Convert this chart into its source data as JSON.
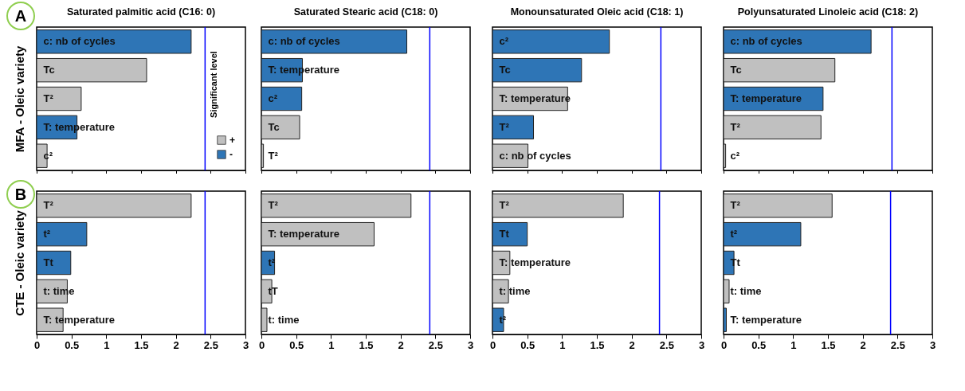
{
  "chart_data": [
    {
      "type": "bar",
      "orientation": "horizontal",
      "title": "Saturated palmitic acid (C16: 0)",
      "ylabel": "MFA - Oleic variety",
      "annotations": [
        "A"
      ],
      "categories": [
        "c: nb of cycles",
        "Tc",
        "T²",
        "T: temperature",
        "c²"
      ],
      "series": [
        {
          "name": "+",
          "color": "#c0c0c0",
          "values": [
            null,
            1.58,
            0.64,
            null,
            0.15
          ]
        },
        {
          "name": "-",
          "color": "#2e75b6",
          "values": [
            2.22,
            null,
            null,
            0.58,
            null
          ]
        }
      ],
      "xlim": [
        0,
        3
      ],
      "xticks": [
        0,
        0.5,
        1,
        1.5,
        2,
        2.5,
        3
      ],
      "tick_labels": "y",
      "legend": "bottom right",
      "ref_lines": [
        {
          "axis": "x",
          "value": 2.42,
          "label": "Significant level",
          "color": "#0000ff"
        }
      ]
    },
    {
      "type": "bar",
      "orientation": "horizontal",
      "title": "Saturated Stearic acid (C18: 0)",
      "categories": [
        "c: nb of cycles",
        "T: temperature",
        "c²",
        "Tc",
        "T²"
      ],
      "series": [
        {
          "color": "#c0c0c0",
          "values": [
            null,
            null,
            null,
            0.55,
            0.03
          ]
        },
        {
          "color": "#2e75b6",
          "values": [
            2.09,
            0.59,
            0.58,
            null,
            null
          ]
        }
      ],
      "xlim": [
        0,
        3
      ],
      "xticks": [
        0,
        0.5,
        1,
        1.5,
        2,
        2.5,
        3
      ],
      "tick_labels": "y",
      "ref_lines": [
        {
          "axis": "x",
          "value": 2.42,
          "color": "#0000ff"
        }
      ]
    },
    {
      "type": "bar",
      "orientation": "horizontal",
      "title": "Monounsaturated Oleic acid  (C18: 1)",
      "categories": [
        "c²",
        "Tc",
        "T: temperature",
        "T²",
        "c: nb of cycles"
      ],
      "series": [
        {
          "color": "#c0c0c0",
          "values": [
            null,
            null,
            1.08,
            null,
            0.51
          ]
        },
        {
          "color": "#2e75b6",
          "values": [
            1.68,
            1.28,
            null,
            0.59,
            null
          ]
        }
      ],
      "xlim": [
        0,
        3
      ],
      "xticks": [
        0,
        0.5,
        1,
        1.5,
        2,
        2.5,
        3
      ],
      "tick_labels": "y",
      "ref_lines": [
        {
          "axis": "x",
          "value": 2.42,
          "color": "#0000ff"
        }
      ]
    },
    {
      "type": "bar",
      "orientation": "horizontal",
      "title": "Polyunsaturated Linoleic  acid  (C18: 2)",
      "categories": [
        "c: nb of cycles",
        "Tc",
        "T: temperature",
        "T²",
        "c²"
      ],
      "series": [
        {
          "color": "#c0c0c0",
          "values": [
            null,
            1.6,
            null,
            1.4,
            0.03
          ]
        },
        {
          "color": "#2e75b6",
          "values": [
            2.12,
            null,
            1.43,
            null,
            null
          ]
        }
      ],
      "xlim": [
        0,
        3
      ],
      "xticks": [
        0,
        0.5,
        1,
        1.5,
        2,
        2.5,
        3
      ],
      "tick_labels": "y",
      "ref_lines": [
        {
          "axis": "x",
          "value": 2.42,
          "color": "#0000ff"
        }
      ]
    },
    {
      "type": "bar",
      "orientation": "horizontal",
      "ylabel": "CTE - Oleic variety",
      "annotations": [
        "B"
      ],
      "categories": [
        "T²",
        "t²",
        "Tt",
        "t: time",
        "T: temperature"
      ],
      "series": [
        {
          "color": "#c0c0c0",
          "values": [
            2.22,
            null,
            null,
            0.44,
            0.38
          ]
        },
        {
          "color": "#2e75b6",
          "values": [
            null,
            0.72,
            0.49,
            null,
            null
          ]
        }
      ],
      "xlim": [
        0,
        3
      ],
      "xticks": [
        0,
        0.5,
        1,
        1.5,
        2,
        2.5,
        3
      ],
      "ref_lines": [
        {
          "axis": "x",
          "value": 2.42,
          "color": "#0000ff"
        }
      ]
    },
    {
      "type": "bar",
      "orientation": "horizontal",
      "categories": [
        "T²",
        "T: temperature",
        "t²",
        "tT",
        "t: time"
      ],
      "series": [
        {
          "color": "#c0c0c0",
          "values": [
            2.15,
            1.62,
            null,
            0.15,
            0.08
          ]
        },
        {
          "color": "#2e75b6",
          "values": [
            null,
            null,
            0.19,
            null,
            null
          ]
        }
      ],
      "xlim": [
        0,
        3
      ],
      "xticks": [
        0,
        0.5,
        1,
        1.5,
        2,
        2.5,
        3
      ],
      "ref_lines": [
        {
          "axis": "x",
          "value": 2.42,
          "color": "#0000ff"
        }
      ]
    },
    {
      "type": "bar",
      "orientation": "horizontal",
      "categories": [
        "T²",
        "Tt",
        "T: temperature",
        "t: time",
        "t²"
      ],
      "series": [
        {
          "color": "#c0c0c0",
          "values": [
            1.88,
            null,
            0.25,
            0.23,
            null
          ]
        },
        {
          "color": "#2e75b6",
          "values": [
            null,
            0.5,
            null,
            null,
            0.16
          ]
        }
      ],
      "xlim": [
        0,
        3
      ],
      "xticks": [
        0,
        0.5,
        1,
        1.5,
        2,
        2.5,
        3
      ],
      "ref_lines": [
        {
          "axis": "x",
          "value": 2.4,
          "color": "#0000ff"
        }
      ]
    },
    {
      "type": "bar",
      "orientation": "horizontal",
      "categories": [
        "T²",
        "t²",
        "Tt",
        "t: time",
        "T: temperature"
      ],
      "series": [
        {
          "color": "#c0c0c0",
          "values": [
            1.56,
            null,
            null,
            0.08,
            null
          ]
        },
        {
          "color": "#2e75b6",
          "values": [
            null,
            1.11,
            0.15,
            null,
            0.04
          ]
        }
      ],
      "xlim": [
        0,
        3
      ],
      "xticks": [
        0,
        0.5,
        1,
        1.5,
        2,
        2.5,
        3
      ],
      "ref_lines": [
        {
          "axis": "x",
          "value": 2.4,
          "color": "#0000ff"
        }
      ]
    }
  ]
}
